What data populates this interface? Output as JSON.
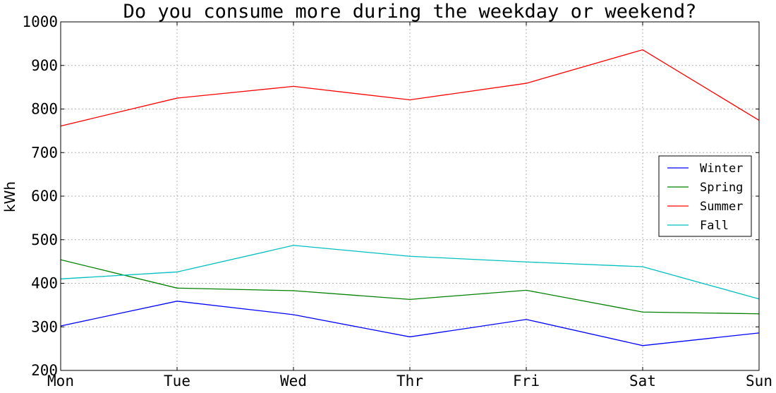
{
  "chart_data": {
    "type": "line",
    "title": "Do you consume more during the weekday or weekend?",
    "xlabel": "",
    "ylabel": "kWh",
    "categories": [
      "Mon",
      "Tue",
      "Wed",
      "Thr",
      "Fri",
      "Sat",
      "Sun"
    ],
    "ylim": [
      200,
      1000
    ],
    "yticks": [
      200,
      300,
      400,
      500,
      600,
      700,
      800,
      900,
      1000
    ],
    "grid": true,
    "legend_position": "center-right",
    "series": [
      {
        "name": "Winter",
        "color": "#0000ff",
        "values": [
          302,
          359,
          328,
          277,
          317,
          257,
          286
        ]
      },
      {
        "name": "Spring",
        "color": "#008000",
        "values": [
          454,
          389,
          383,
          363,
          384,
          334,
          330
        ]
      },
      {
        "name": "Summer",
        "color": "#ff0000",
        "values": [
          761,
          825,
          852,
          821,
          859,
          936,
          774
        ]
      },
      {
        "name": "Fall",
        "color": "#00bfbf",
        "values": [
          410,
          426,
          487,
          462,
          449,
          438,
          364
        ]
      }
    ]
  }
}
